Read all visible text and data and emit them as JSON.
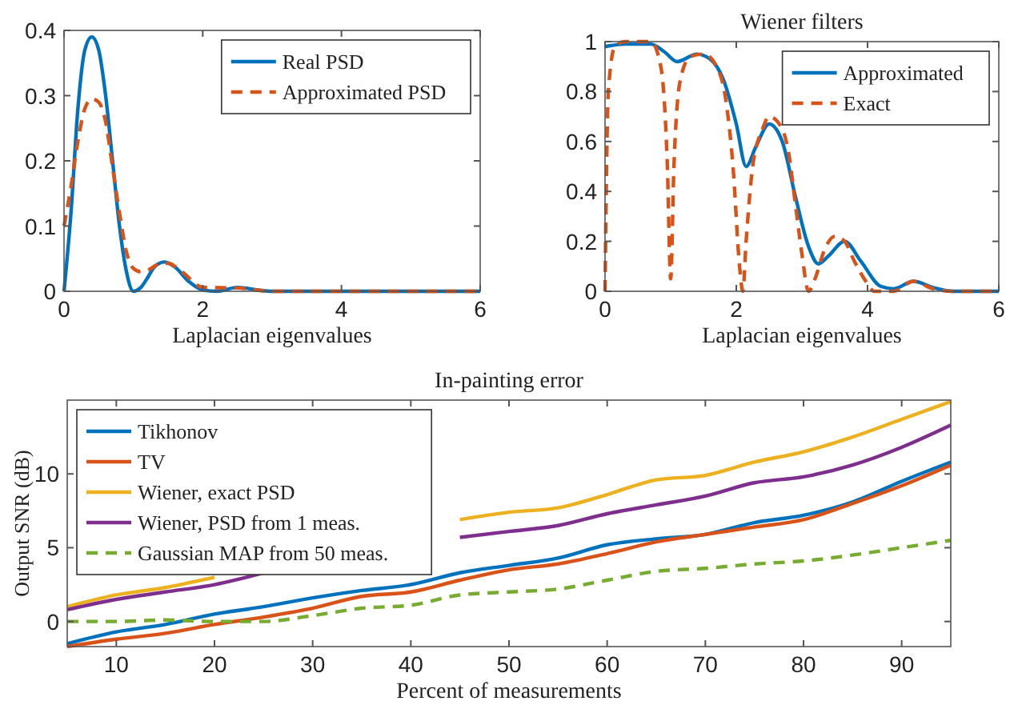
{
  "chart_data": [
    {
      "type": "line",
      "xlabel": "Laplacian eigenvalues",
      "xlim": [
        0,
        6
      ],
      "xticks": [
        0,
        2,
        4,
        6
      ],
      "ylim": [
        0,
        0.4
      ],
      "yticks": [
        0,
        0.1,
        0.2,
        0.3,
        0.4
      ],
      "grid": false,
      "legend": "top right",
      "series": [
        {
          "name": "Real PSD",
          "color": "#0072bd",
          "line_style": "solid",
          "x": [
            0,
            0.1,
            0.2,
            0.3,
            0.4,
            0.5,
            0.6,
            0.7,
            0.8,
            0.9,
            1.0,
            1.1,
            1.2,
            1.3,
            1.45,
            1.6,
            1.8,
            2.0,
            2.2,
            2.5,
            2.8,
            3,
            6
          ],
          "values": [
            0,
            0.12,
            0.28,
            0.37,
            0.39,
            0.37,
            0.3,
            0.2,
            0.1,
            0.03,
            0.0,
            0.005,
            0.02,
            0.037,
            0.045,
            0.037,
            0.015,
            0.002,
            0,
            0.006,
            0.002,
            0,
            0
          ]
        },
        {
          "name": "Approximated PSD",
          "color": "#d95319",
          "line_style": "dashed",
          "x": [
            0,
            0.1,
            0.2,
            0.3,
            0.4,
            0.5,
            0.6,
            0.7,
            0.8,
            0.9,
            1.0,
            1.1,
            1.2,
            1.4,
            1.5,
            1.7,
            2.0,
            2.5,
            3,
            6
          ],
          "values": [
            0.1,
            0.16,
            0.23,
            0.28,
            0.295,
            0.29,
            0.26,
            0.19,
            0.12,
            0.06,
            0.035,
            0.03,
            0.032,
            0.043,
            0.043,
            0.03,
            0.006,
            0.005,
            0,
            0
          ]
        }
      ]
    },
    {
      "type": "line",
      "title": "Wiener filters",
      "xlabel": "Laplacian eigenvalues",
      "xlim": [
        0,
        6
      ],
      "xticks": [
        0,
        2,
        4,
        6
      ],
      "ylim": [
        0,
        1
      ],
      "yticks": [
        0,
        0.2,
        0.4,
        0.6,
        0.8,
        1
      ],
      "grid": false,
      "legend": "top right",
      "series": [
        {
          "name": "Approximated",
          "color": "#0072bd",
          "line_style": "solid",
          "x": [
            0,
            0.3,
            0.7,
            0.9,
            1.1,
            1.4,
            1.6,
            1.8,
            2.0,
            2.15,
            2.3,
            2.5,
            2.7,
            2.9,
            3.1,
            3.25,
            3.4,
            3.65,
            3.9,
            4.2,
            4.4,
            4.7,
            5.0,
            5.3,
            6
          ],
          "values": [
            0.98,
            0.99,
            0.99,
            0.96,
            0.92,
            0.95,
            0.93,
            0.85,
            0.67,
            0.5,
            0.58,
            0.67,
            0.6,
            0.38,
            0.18,
            0.11,
            0.14,
            0.2,
            0.12,
            0.02,
            0.01,
            0.04,
            0.015,
            0,
            0
          ]
        },
        {
          "name": "Exact",
          "color": "#d95319",
          "line_style": "dashed",
          "x": [
            0,
            0.05,
            0.15,
            0.3,
            0.7,
            0.85,
            0.95,
            1.0,
            1.05,
            1.15,
            1.3,
            1.5,
            1.7,
            1.85,
            1.95,
            2.05,
            2.1,
            2.15,
            2.25,
            2.4,
            2.5,
            2.7,
            2.8,
            2.9,
            3.0,
            3.1,
            3.2,
            3.35,
            3.5,
            3.65,
            3.8,
            4.0,
            4.1,
            4.4,
            4.7,
            5.0,
            5.3,
            6
          ],
          "values": [
            0,
            0.8,
            0.98,
            1,
            1,
            0.9,
            0.5,
            0.05,
            0.5,
            0.85,
            0.94,
            0.95,
            0.9,
            0.75,
            0.5,
            0.1,
            0,
            0.2,
            0.5,
            0.65,
            0.7,
            0.65,
            0.55,
            0.35,
            0.15,
            0,
            0.05,
            0.17,
            0.22,
            0.2,
            0.12,
            0.03,
            0,
            0,
            0.04,
            0.01,
            0,
            0
          ]
        }
      ]
    },
    {
      "type": "line",
      "title": "In-painting error",
      "xlabel": "Percent of measurements",
      "ylabel": "Output SNR (dB)",
      "xlim": [
        5,
        95
      ],
      "xticks": [
        10,
        20,
        30,
        40,
        50,
        60,
        70,
        80,
        90
      ],
      "ylim": [
        -1.7,
        15
      ],
      "yticks": [
        0,
        5,
        10
      ],
      "grid": false,
      "legend": "top left",
      "x": [
        5,
        10,
        15,
        20,
        25,
        30,
        35,
        40,
        45,
        50,
        55,
        60,
        65,
        70,
        75,
        80,
        85,
        90,
        95
      ],
      "series": [
        {
          "name": "Tikhonov",
          "color": "#0072bd",
          "line_style": "solid",
          "values": [
            -1.5,
            -0.7,
            -0.2,
            0.5,
            1,
            1.6,
            2.1,
            2.5,
            3.3,
            3.8,
            4.3,
            5.2,
            5.6,
            5.9,
            6.7,
            7.2,
            8.1,
            9.5,
            10.8
          ]
        },
        {
          "name": "TV",
          "color": "#d95319",
          "line_style": "solid",
          "values": [
            -1.7,
            -1.2,
            -0.8,
            -0.2,
            0.3,
            0.9,
            1.7,
            2,
            2.8,
            3.5,
            3.9,
            4.6,
            5.4,
            5.9,
            6.4,
            6.9,
            8,
            9.2,
            10.6
          ]
        },
        {
          "name": "Wiener, exact PSD",
          "color": "#edb120",
          "line_style": "solid",
          "values": [
            1,
            1.8,
            2.3,
            3,
            null,
            null,
            null,
            null,
            6.9,
            7.4,
            7.7,
            8.6,
            9.6,
            9.9,
            10.8,
            11.5,
            12.5,
            13.7,
            14.9
          ]
        },
        {
          "name": "Wiener, PSD from 1 meas.",
          "color": "#7e2f8e",
          "line_style": "solid",
          "values": [
            0.8,
            1.5,
            2,
            2.5,
            3.3,
            null,
            null,
            null,
            5.7,
            6.1,
            6.5,
            7.3,
            7.9,
            8.5,
            9.4,
            9.8,
            10.6,
            11.8,
            13.3
          ]
        },
        {
          "name": "Gaussian MAP from 50 meas.",
          "color": "#77ac30",
          "line_style": "dashed",
          "values": [
            0,
            0,
            0.1,
            0,
            0,
            0.4,
            0.9,
            1.1,
            1.8,
            2,
            2.2,
            2.8,
            3.4,
            3.6,
            3.9,
            4.1,
            4.5,
            5,
            5.5
          ]
        }
      ]
    }
  ]
}
